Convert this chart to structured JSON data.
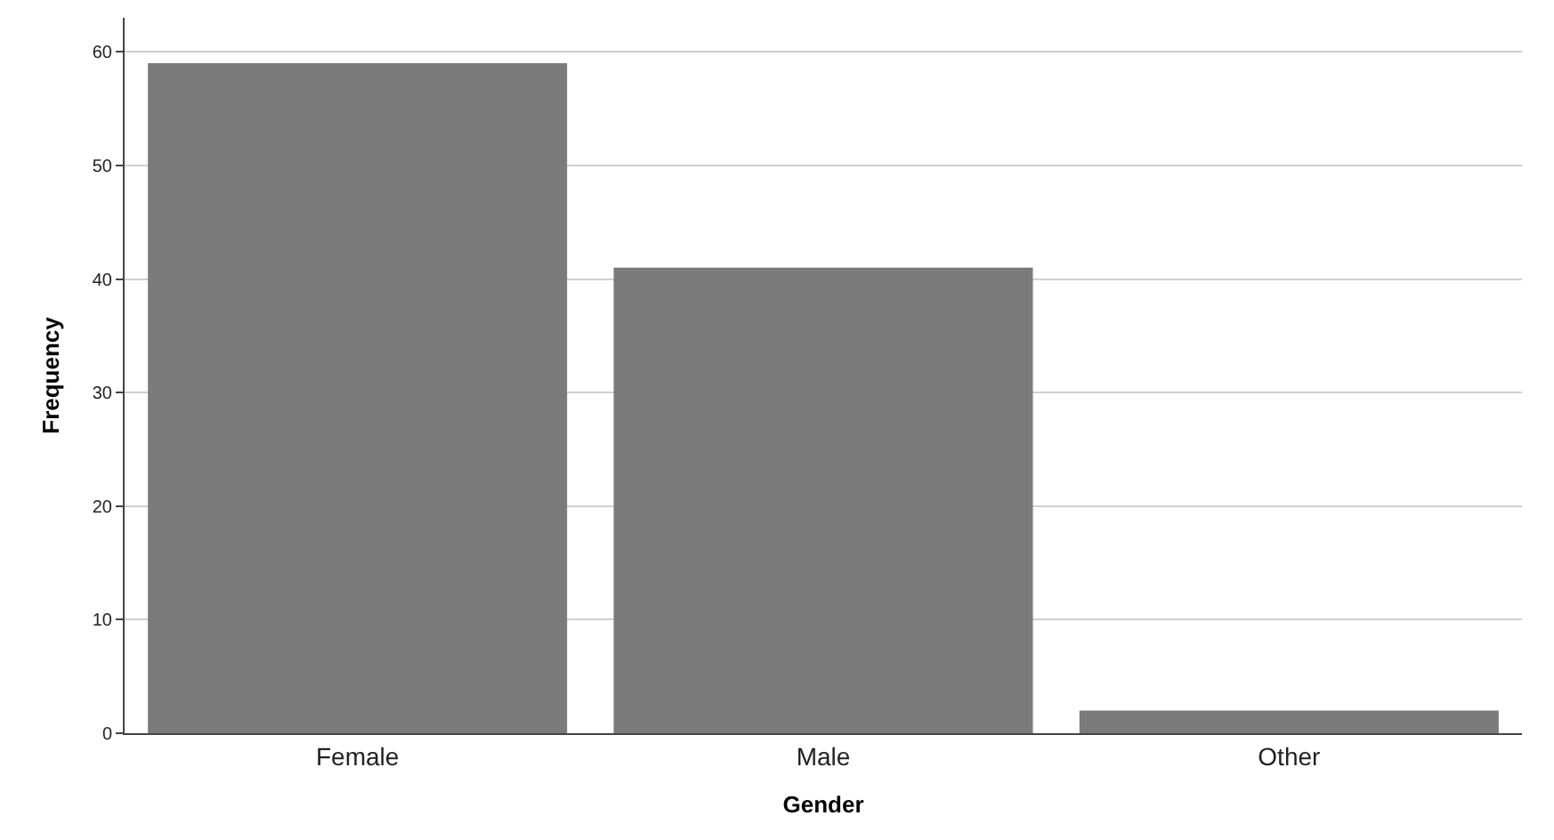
{
  "chart_data": {
    "type": "bar",
    "xlabel": "Gender",
    "ylabel": "Frequency",
    "categories": [
      "Female",
      "Male",
      "Other"
    ],
    "values": [
      59,
      41,
      2
    ],
    "color": "#7b7b7b",
    "ylim": [
      0,
      63
    ],
    "yticks": [
      0,
      10,
      20,
      30,
      40,
      50,
      60
    ],
    "grid": "y"
  }
}
